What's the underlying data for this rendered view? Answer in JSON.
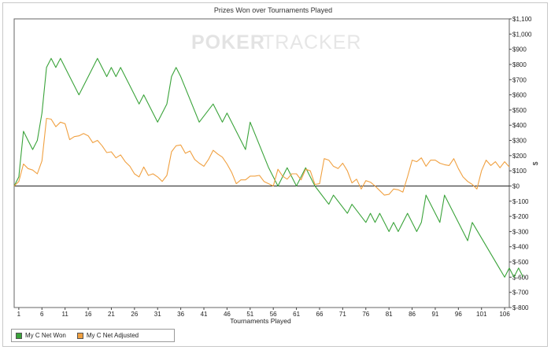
{
  "chart_data": {
    "type": "line",
    "title": "Prizes Won over Tournaments Played",
    "watermark": {
      "part1": "POKER",
      "part2": "TRACKER"
    },
    "xlabel": "Tournaments Played",
    "ylabel": "$",
    "xlim": [
      0,
      107
    ],
    "ylim": [
      -800,
      1100
    ],
    "x_ticks": [
      1,
      6,
      11,
      16,
      21,
      26,
      31,
      36,
      41,
      46,
      51,
      56,
      61,
      66,
      71,
      76,
      81,
      86,
      91,
      96,
      101,
      106
    ],
    "y_ticks": [
      {
        "v": 1100,
        "label": "$1,100"
      },
      {
        "v": 1000,
        "label": "$1,000"
      },
      {
        "v": 900,
        "label": "$900"
      },
      {
        "v": 800,
        "label": "$800"
      },
      {
        "v": 700,
        "label": "$700"
      },
      {
        "v": 600,
        "label": "$600"
      },
      {
        "v": 500,
        "label": "$500"
      },
      {
        "v": 400,
        "label": "$400"
      },
      {
        "v": 300,
        "label": "$300"
      },
      {
        "v": 200,
        "label": "$200"
      },
      {
        "v": 100,
        "label": "$100"
      },
      {
        "v": 0,
        "label": "$0"
      },
      {
        "v": -100,
        "label": "$-100"
      },
      {
        "v": -200,
        "label": "$-200"
      },
      {
        "v": -300,
        "label": "$-300"
      },
      {
        "v": -400,
        "label": "$-400"
      },
      {
        "v": -500,
        "label": "$-500"
      },
      {
        "v": -600,
        "label": "$-600"
      },
      {
        "v": -700,
        "label": "$-700"
      },
      {
        "v": -800,
        "label": "$-800"
      }
    ],
    "grid": false,
    "legend_position": "bottom-left",
    "series": [
      {
        "name": "My C Net Won",
        "color": "#3aa33a",
        "points": [
          [
            0,
            0
          ],
          [
            1,
            60
          ],
          [
            2,
            360
          ],
          [
            3,
            300
          ],
          [
            4,
            240
          ],
          [
            5,
            300
          ],
          [
            6,
            480
          ],
          [
            7,
            780
          ],
          [
            8,
            840
          ],
          [
            9,
            780
          ],
          [
            10,
            840
          ],
          [
            12,
            720
          ],
          [
            14,
            600
          ],
          [
            16,
            720
          ],
          [
            18,
            840
          ],
          [
            20,
            720
          ],
          [
            21,
            780
          ],
          [
            22,
            720
          ],
          [
            23,
            780
          ],
          [
            25,
            660
          ],
          [
            27,
            540
          ],
          [
            28,
            600
          ],
          [
            31,
            420
          ],
          [
            33,
            540
          ],
          [
            34,
            720
          ],
          [
            35,
            780
          ],
          [
            36,
            720
          ],
          [
            40,
            420
          ],
          [
            43,
            540
          ],
          [
            45,
            420
          ],
          [
            46,
            480
          ],
          [
            50,
            240
          ],
          [
            51,
            420
          ],
          [
            55,
            120
          ],
          [
            57,
            0
          ],
          [
            59,
            120
          ],
          [
            61,
            0
          ],
          [
            63,
            120
          ],
          [
            65,
            0
          ],
          [
            68,
            -120
          ],
          [
            69,
            -60
          ],
          [
            72,
            -180
          ],
          [
            73,
            -120
          ],
          [
            76,
            -240
          ],
          [
            77,
            -180
          ],
          [
            78,
            -240
          ],
          [
            79,
            -180
          ],
          [
            81,
            -300
          ],
          [
            82,
            -240
          ],
          [
            83,
            -300
          ],
          [
            85,
            -180
          ],
          [
            87,
            -300
          ],
          [
            88,
            -240
          ],
          [
            89,
            -60
          ],
          [
            92,
            -240
          ],
          [
            93,
            -60
          ],
          [
            98,
            -360
          ],
          [
            99,
            -240
          ],
          [
            106,
            -600
          ],
          [
            107,
            -540
          ],
          [
            108,
            -600
          ],
          [
            109,
            -540
          ],
          [
            110,
            -600
          ]
        ]
      },
      {
        "name": "My C Net Adjusted",
        "color": "#f0a040",
        "points": [
          [
            0,
            0
          ],
          [
            1,
            30
          ],
          [
            2,
            145
          ],
          [
            3,
            115
          ],
          [
            4,
            105
          ],
          [
            5,
            80
          ],
          [
            6,
            165
          ],
          [
            7,
            445
          ],
          [
            8,
            440
          ],
          [
            9,
            390
          ],
          [
            10,
            420
          ],
          [
            11,
            410
          ],
          [
            12,
            305
          ],
          [
            13,
            325
          ],
          [
            14,
            330
          ],
          [
            15,
            345
          ],
          [
            16,
            330
          ],
          [
            17,
            285
          ],
          [
            18,
            300
          ],
          [
            19,
            265
          ],
          [
            20,
            220
          ],
          [
            21,
            225
          ],
          [
            22,
            185
          ],
          [
            23,
            205
          ],
          [
            24,
            160
          ],
          [
            25,
            130
          ],
          [
            26,
            80
          ],
          [
            27,
            60
          ],
          [
            28,
            125
          ],
          [
            29,
            70
          ],
          [
            30,
            80
          ],
          [
            31,
            60
          ],
          [
            32,
            30
          ],
          [
            33,
            70
          ],
          [
            34,
            225
          ],
          [
            35,
            265
          ],
          [
            36,
            270
          ],
          [
            37,
            215
          ],
          [
            38,
            230
          ],
          [
            39,
            175
          ],
          [
            40,
            150
          ],
          [
            41,
            130
          ],
          [
            42,
            175
          ],
          [
            43,
            235
          ],
          [
            44,
            210
          ],
          [
            45,
            190
          ],
          [
            46,
            145
          ],
          [
            47,
            90
          ],
          [
            48,
            15
          ],
          [
            49,
            40
          ],
          [
            50,
            40
          ],
          [
            51,
            65
          ],
          [
            52,
            65
          ],
          [
            53,
            70
          ],
          [
            54,
            30
          ],
          [
            55,
            15
          ],
          [
            56,
            0
          ],
          [
            57,
            110
          ],
          [
            58,
            65
          ],
          [
            59,
            45
          ],
          [
            60,
            80
          ],
          [
            61,
            80
          ],
          [
            62,
            40
          ],
          [
            63,
            110
          ],
          [
            64,
            100
          ],
          [
            65,
            10
          ],
          [
            66,
            15
          ],
          [
            67,
            180
          ],
          [
            68,
            170
          ],
          [
            69,
            130
          ],
          [
            70,
            115
          ],
          [
            71,
            150
          ],
          [
            72,
            100
          ],
          [
            73,
            20
          ],
          [
            74,
            45
          ],
          [
            75,
            -20
          ],
          [
            76,
            35
          ],
          [
            77,
            25
          ],
          [
            78,
            0
          ],
          [
            79,
            -30
          ],
          [
            80,
            -60
          ],
          [
            81,
            -55
          ],
          [
            82,
            -20
          ],
          [
            83,
            -25
          ],
          [
            84,
            -40
          ],
          [
            85,
            60
          ],
          [
            86,
            170
          ],
          [
            87,
            160
          ],
          [
            88,
            185
          ],
          [
            89,
            130
          ],
          [
            90,
            170
          ],
          [
            91,
            170
          ],
          [
            92,
            150
          ],
          [
            93,
            140
          ],
          [
            94,
            135
          ],
          [
            95,
            180
          ],
          [
            96,
            115
          ],
          [
            97,
            60
          ],
          [
            98,
            30
          ],
          [
            99,
            10
          ],
          [
            100,
            -20
          ],
          [
            101,
            100
          ],
          [
            102,
            170
          ],
          [
            103,
            135
          ],
          [
            104,
            160
          ],
          [
            105,
            120
          ],
          [
            106,
            160
          ],
          [
            107,
            125
          ]
        ]
      }
    ]
  },
  "legend": {
    "items": [
      {
        "label": "My C Net Won",
        "color": "#3aa33a"
      },
      {
        "label": "My C Net Adjusted",
        "color": "#f0a040"
      }
    ]
  }
}
